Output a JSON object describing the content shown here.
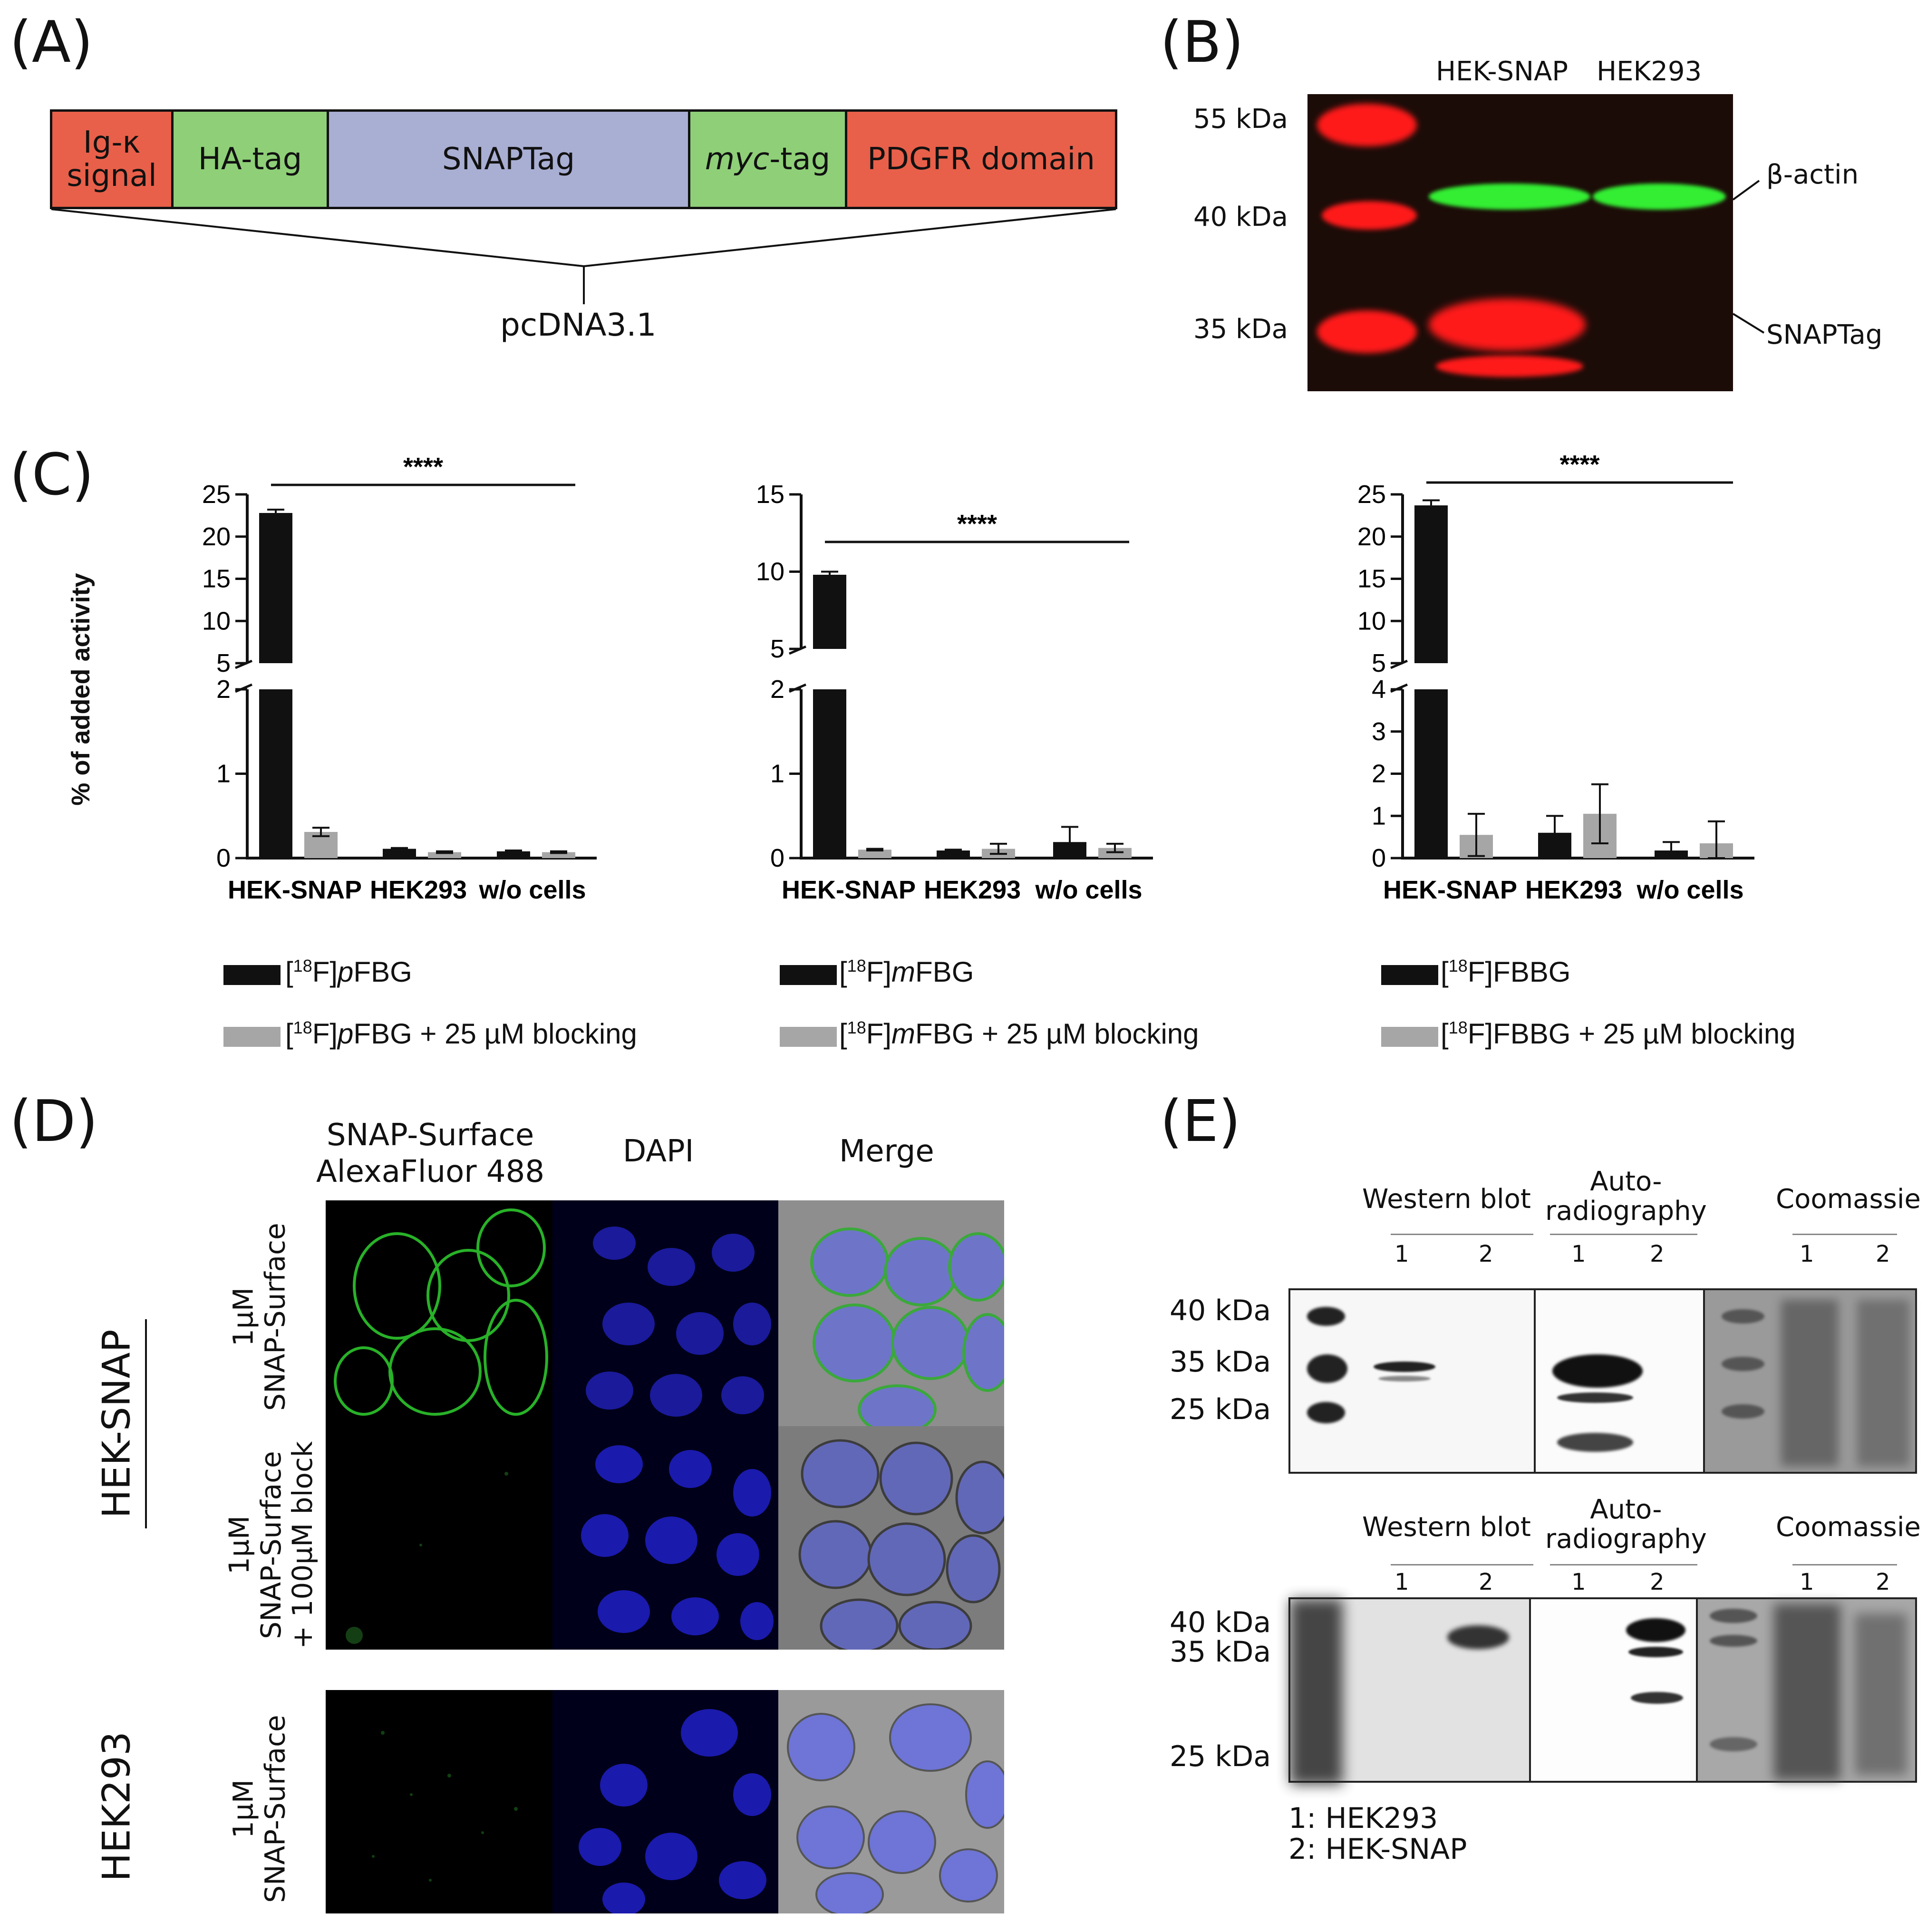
{
  "panels": {
    "A": "(A)",
    "B": "(B)",
    "C": "(C)",
    "D": "(D)",
    "E": "(E)"
  },
  "panel_a": {
    "segments": [
      {
        "label": "Ig-κ\nsignal",
        "color": "#e8604a"
      },
      {
        "label": "HA-tag",
        "color": "#8fcf78"
      },
      {
        "label": "SNAPTag",
        "color": "#a9aed3"
      },
      {
        "label_italic": "myc",
        "label_rest": "-tag",
        "color": "#8fcf78"
      },
      {
        "label": "PDGFR domain",
        "color": "#e8604a"
      }
    ],
    "vector": "pcDNA3.1"
  },
  "panel_b": {
    "lanes": [
      "HEK-SNAP",
      "HEK293"
    ],
    "markers": [
      "55 kDa",
      "40 kDa",
      "35 kDa"
    ],
    "right_labels": [
      "β-actin",
      "SNAPTag"
    ]
  },
  "panel_c": {
    "ylabel": "% of added activity",
    "significance": "****",
    "legends": [
      {
        "prefix": "[",
        "sup": "18",
        "mid": "F]",
        "ital": "p",
        "rest": "FBG",
        "block": " + 25 µM blocking"
      },
      {
        "prefix": "[",
        "sup": "18",
        "mid": "F]",
        "ital": "m",
        "rest": "FBG",
        "block": " + 25 µM blocking"
      },
      {
        "prefix": "[",
        "sup": "18",
        "mid": "F]",
        "ital": "",
        "rest": "FBBG",
        "block": " + 25 µM blocking"
      }
    ]
  },
  "chart_data": [
    {
      "type": "bar",
      "categories": [
        "HEK-SNAP",
        "HEK293",
        "w/o cells"
      ],
      "series": [
        {
          "name": "[18F]pFBG",
          "values": [
            22.8,
            0.11,
            0.08
          ],
          "errors": [
            0.4,
            0.01,
            0.01
          ]
        },
        {
          "name": "[18F]pFBG + 25 µM blocking",
          "values": [
            0.31,
            0.07,
            0.07
          ],
          "errors": [
            0.05,
            0.01,
            0.01
          ]
        }
      ],
      "ylabel": "% of added activity",
      "y_break": {
        "lower": [
          0,
          2
        ],
        "upper": [
          5,
          25
        ]
      },
      "lower_ticks": [
        "0",
        "1",
        "2"
      ],
      "upper_ticks": [
        "5",
        "10",
        "15",
        "20",
        "25"
      ],
      "significance": "****"
    },
    {
      "type": "bar",
      "categories": [
        "HEK-SNAP",
        "HEK293",
        "w/o cells"
      ],
      "series": [
        {
          "name": "[18F]mFBG",
          "values": [
            9.8,
            0.09,
            0.19
          ],
          "errors": [
            0.2,
            0.01,
            0.18
          ]
        },
        {
          "name": "[18F]mFBG + 25 µM blocking",
          "values": [
            0.1,
            0.11,
            0.12
          ],
          "errors": [
            0.01,
            0.06,
            0.05
          ]
        }
      ],
      "y_break": {
        "lower": [
          0,
          2
        ],
        "upper": [
          5,
          15
        ]
      },
      "lower_ticks": [
        "0",
        "1",
        "2"
      ],
      "upper_ticks": [
        "5",
        "10",
        "15"
      ],
      "significance": "****"
    },
    {
      "type": "bar",
      "categories": [
        "HEK-SNAP",
        "HEK293",
        "w/o cells"
      ],
      "series": [
        {
          "name": "[18F]FBBG",
          "values": [
            23.7,
            0.6,
            0.18
          ],
          "errors": [
            0.6,
            0.4,
            0.2
          ]
        },
        {
          "name": "[18F]FBBG + 25 µM blocking",
          "values": [
            0.55,
            1.05,
            0.35
          ],
          "errors": [
            0.5,
            0.7,
            0.52
          ]
        }
      ],
      "y_break": {
        "lower": [
          0,
          4
        ],
        "upper": [
          5,
          25
        ]
      },
      "lower_ticks": [
        "0",
        "1",
        "2",
        "3",
        "4"
      ],
      "upper_ticks": [
        "5",
        "10",
        "15",
        "20",
        "25"
      ],
      "significance": "****"
    }
  ],
  "panel_d": {
    "col_headers": [
      "SNAP-Surface\nAlexaFluor 488",
      "DAPI",
      "Merge"
    ],
    "row_labels": [
      "1µM\nSNAP-Surface",
      "1µM\nSNAP-Surface\n+ 100µM block",
      "1µM\nSNAP-Surface"
    ],
    "group_labels": [
      "HEK-SNAP",
      "HEK293"
    ]
  },
  "panel_e": {
    "headers": [
      "Western blot",
      "Auto-\nradiography",
      "Coomassie"
    ],
    "lane_nums": [
      "1",
      "2"
    ],
    "top_markers": [
      "40 kDa",
      "35 kDa",
      "25 kDa"
    ],
    "bottom_markers": [
      "40 kDa",
      "35 kDa",
      "25 kDa"
    ],
    "legend": [
      "1: HEK293",
      "2: HEK-SNAP"
    ]
  },
  "colors": {
    "black_bar": "#111111",
    "grey_bar": "#a6a6a6",
    "red_band": "#ff1a1a",
    "green_band": "#33ee33"
  }
}
